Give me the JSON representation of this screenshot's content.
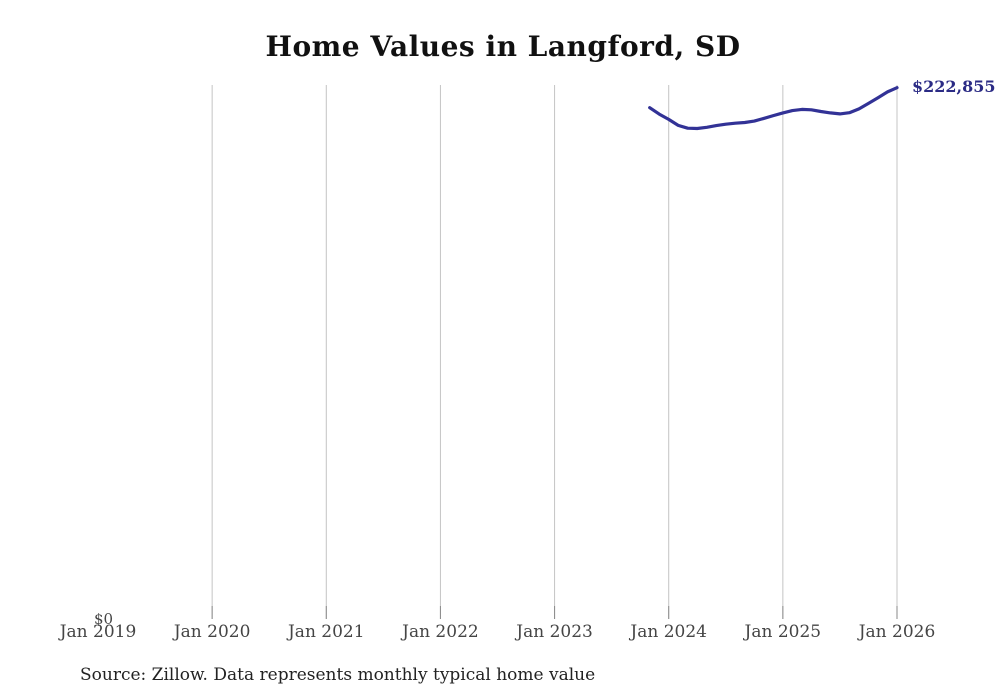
{
  "title": "Home Values in Langford, SD",
  "source_note": "Source: Zillow. Data represents monthly typical home value",
  "y_axis": {
    "zero_label": "$0"
  },
  "x_axis": {
    "tick_labels": [
      "Jan 2019",
      "Jan 2020",
      "Jan 2021",
      "Jan 2022",
      "Jan 2023",
      "Jan 2024",
      "Jan 2025",
      "Jan 2026"
    ]
  },
  "colors": {
    "line": "#323296",
    "end_label": "#2b2b85",
    "gridline": "#c4c4c4",
    "tick": "#8a8a8a"
  },
  "chart_data": {
    "type": "line",
    "title": "Home Values in Langford, SD",
    "x": [
      "2023-11",
      "2023-12",
      "2024-01",
      "2024-02",
      "2024-03",
      "2024-04",
      "2024-05",
      "2024-06",
      "2024-07",
      "2024-08",
      "2024-09",
      "2024-10",
      "2024-11",
      "2024-12",
      "2025-01",
      "2025-02",
      "2025-03",
      "2025-04",
      "2025-05",
      "2025-06",
      "2025-07",
      "2025-08",
      "2025-09",
      "2025-10",
      "2025-11",
      "2025-12",
      "2026-01"
    ],
    "values": [
      214500,
      211800,
      209600,
      207100,
      205900,
      205800,
      206300,
      207000,
      207600,
      208000,
      208300,
      208900,
      210000,
      211200,
      212300,
      213300,
      213800,
      213600,
      212900,
      212300,
      211900,
      212400,
      214000,
      216300,
      218700,
      221100,
      222855
    ],
    "end_label": "$222,855",
    "xlabel": "",
    "ylabel": "",
    "x_ticks": [
      "Jan 2019",
      "Jan 2020",
      "Jan 2021",
      "Jan 2022",
      "Jan 2023",
      "Jan 2024",
      "Jan 2025",
      "Jan 2026"
    ],
    "ylim": [
      0,
      224000
    ],
    "x_range_months": [
      "2019-01",
      "2026-01"
    ],
    "grid": "vertical-only",
    "legend": "none"
  }
}
